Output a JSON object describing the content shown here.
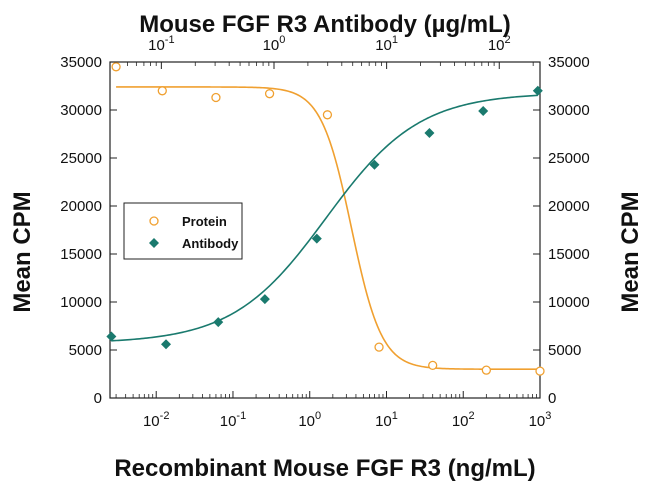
{
  "chart_data": {
    "type": "scatter",
    "title_top": "Mouse FGF R3 Antibody (µg/mL)",
    "xlabel": "Recombinant Mouse FGF R3 (ng/mL)",
    "ylabel_left": "Mean CPM",
    "ylabel_right": "Mean CPM",
    "x_scale": "log",
    "x_bottom_range": [
      0.0025,
      1000
    ],
    "x_bottom_ticks": [
      0.01,
      0.1,
      1,
      10,
      100,
      1000
    ],
    "x_bottom_tick_labels": [
      {
        "base": "10",
        "exp": "-2"
      },
      {
        "base": "10",
        "exp": "-1"
      },
      {
        "base": "10",
        "exp": "0"
      },
      {
        "base": "10",
        "exp": "1"
      },
      {
        "base": "10",
        "exp": "2"
      },
      {
        "base": "10",
        "exp": "3"
      }
    ],
    "x_top_range": [
      0.035,
      230
    ],
    "x_top_ticks": [
      0.1,
      1,
      10,
      100
    ],
    "x_top_tick_labels": [
      {
        "base": "10",
        "exp": "-1"
      },
      {
        "base": "10",
        "exp": "0"
      },
      {
        "base": "10",
        "exp": "1"
      },
      {
        "base": "10",
        "exp": "2"
      }
    ],
    "ylim": [
      0,
      35000
    ],
    "y_ticks": [
      0,
      5000,
      10000,
      15000,
      20000,
      25000,
      30000,
      35000
    ],
    "y_tick_labels": [
      "0",
      "5000",
      "10000",
      "15000",
      "20000",
      "25000",
      "30000",
      "35000"
    ],
    "legend_position": "middle-left",
    "series": [
      {
        "name": "Protein",
        "axis": "bottom",
        "marker": "open-circle",
        "color": "#f0a030",
        "x": [
          0.003,
          0.012,
          0.06,
          0.3,
          1.7,
          8,
          40,
          200,
          1000
        ],
        "y": [
          34500,
          32000,
          31300,
          31700,
          29500,
          5300,
          3400,
          2900,
          2800
        ],
        "fit": {
          "bottom": 3000,
          "top": 32400,
          "ec50": 3.5,
          "hill": 2.2
        }
      },
      {
        "name": "Antibody",
        "axis": "top",
        "marker": "filled-diamond",
        "color": "#1a7a6e",
        "x": [
          0.036,
          0.11,
          0.32,
          0.83,
          2.4,
          7.8,
          24,
          72,
          220
        ],
        "y": [
          6400,
          5600,
          7900,
          10300,
          16600,
          24300,
          27600,
          29900,
          32000
        ],
        "fit": {
          "bottom": 5700,
          "top": 31800,
          "ec50": 2.9,
          "hill": 1.05
        }
      }
    ]
  }
}
